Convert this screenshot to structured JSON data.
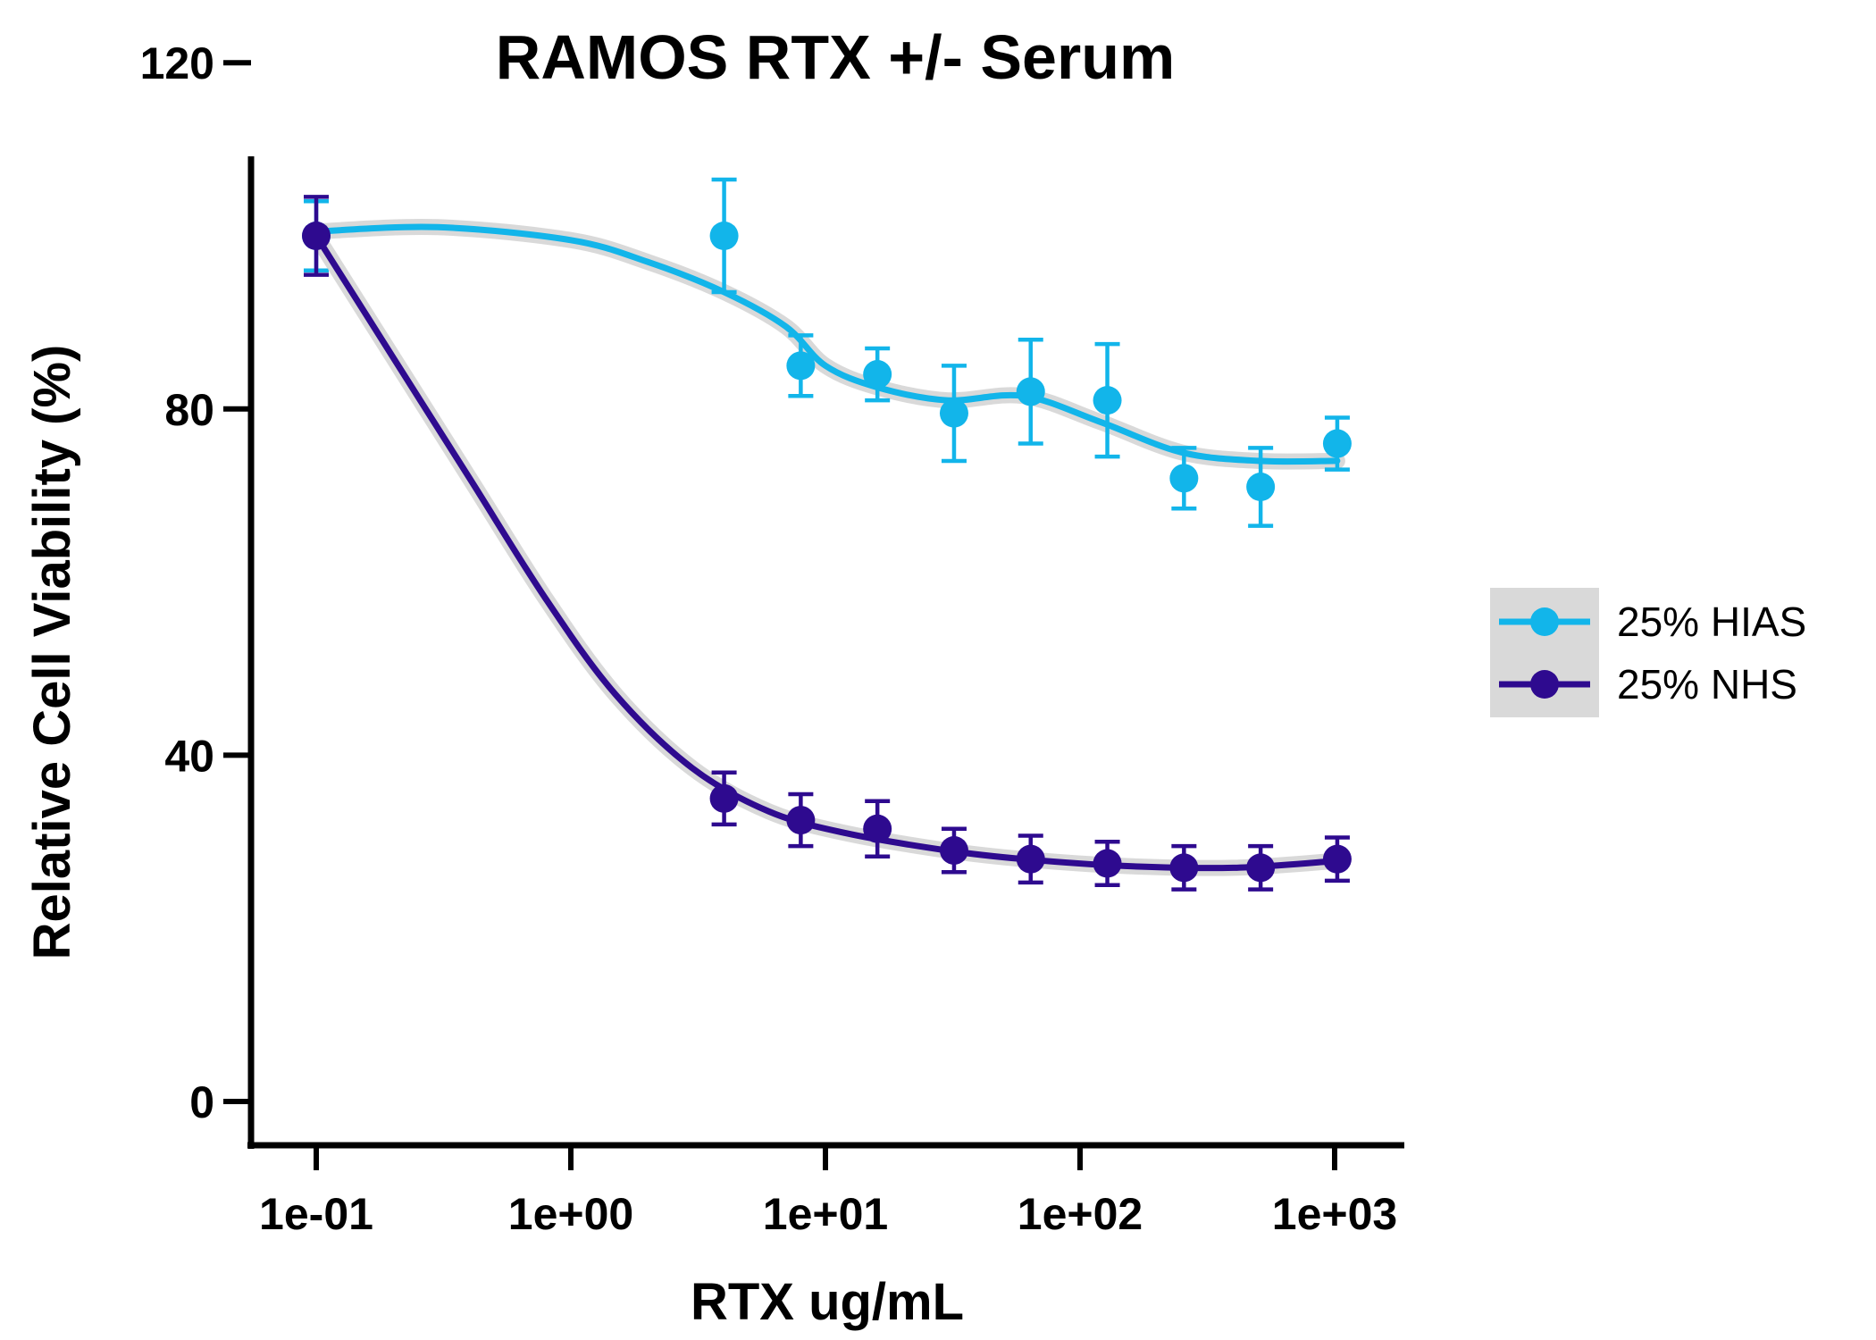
{
  "chart_data": {
    "type": "scatter",
    "title": "RAMOS RTX +/- Serum",
    "xlabel": "RTX ug/mL",
    "ylabel": "Relative Cell Viability (%)",
    "x_scale": "log",
    "xlim": [
      0.06,
      2000
    ],
    "ylim": [
      -6,
      131
    ],
    "x_ticks": [
      0.1,
      1,
      10,
      100,
      1000
    ],
    "x_tick_labels": [
      "1e-01",
      "1e+00",
      "1e+01",
      "1e+02",
      "1e+03"
    ],
    "y_ticks": [
      0,
      40,
      80,
      120
    ],
    "y_tick_labels": [
      "0",
      "40",
      "80",
      "120"
    ],
    "legend_position": "right",
    "series": [
      {
        "name": "25% HIAS",
        "color": "#12b5ea",
        "points": [
          {
            "x": 0.1,
            "y": 100,
            "err": 4
          },
          {
            "x": 4,
            "y": 100,
            "err": 6.5
          },
          {
            "x": 8,
            "y": 85,
            "err": 3.5
          },
          {
            "x": 16,
            "y": 84,
            "err": 3
          },
          {
            "x": 32,
            "y": 79.5,
            "err": 5.5
          },
          {
            "x": 64,
            "y": 82,
            "err": 6
          },
          {
            "x": 128,
            "y": 81,
            "err": 6.5
          },
          {
            "x": 256,
            "y": 72,
            "err": 3.5
          },
          {
            "x": 512,
            "y": 71,
            "err": 4.5
          },
          {
            "x": 1024,
            "y": 76,
            "err": 3
          }
        ],
        "fit": [
          {
            "x": 0.1,
            "y": 100.5
          },
          {
            "x": 0.3,
            "y": 101
          },
          {
            "x": 1,
            "y": 99.5
          },
          {
            "x": 2,
            "y": 97
          },
          {
            "x": 4,
            "y": 93.5
          },
          {
            "x": 7,
            "y": 89.5
          },
          {
            "x": 10,
            "y": 85
          },
          {
            "x": 16,
            "y": 82.5
          },
          {
            "x": 30,
            "y": 81
          },
          {
            "x": 60,
            "y": 81.5
          },
          {
            "x": 120,
            "y": 78.5
          },
          {
            "x": 250,
            "y": 75
          },
          {
            "x": 500,
            "y": 74
          },
          {
            "x": 1024,
            "y": 74
          }
        ]
      },
      {
        "name": "25% NHS",
        "color": "#2e0a8f",
        "points": [
          {
            "x": 0.1,
            "y": 100,
            "err": 4.5
          },
          {
            "x": 4,
            "y": 35,
            "err": 3
          },
          {
            "x": 8,
            "y": 32.5,
            "err": 3
          },
          {
            "x": 16,
            "y": 31.5,
            "err": 3.2
          },
          {
            "x": 32,
            "y": 29,
            "err": 2.5
          },
          {
            "x": 64,
            "y": 28,
            "err": 2.7
          },
          {
            "x": 128,
            "y": 27.5,
            "err": 2.5
          },
          {
            "x": 256,
            "y": 27,
            "err": 2.5
          },
          {
            "x": 512,
            "y": 27,
            "err": 2.5
          },
          {
            "x": 1024,
            "y": 28,
            "err": 2.5
          }
        ],
        "fit": [
          {
            "x": 0.1,
            "y": 100
          },
          {
            "x": 0.2,
            "y": 86
          },
          {
            "x": 0.4,
            "y": 72
          },
          {
            "x": 0.8,
            "y": 58
          },
          {
            "x": 1.5,
            "y": 47
          },
          {
            "x": 3,
            "y": 38.5
          },
          {
            "x": 6,
            "y": 33.5
          },
          {
            "x": 12,
            "y": 31
          },
          {
            "x": 30,
            "y": 29
          },
          {
            "x": 60,
            "y": 28
          },
          {
            "x": 150,
            "y": 27.2
          },
          {
            "x": 400,
            "y": 27
          },
          {
            "x": 1024,
            "y": 27.8
          }
        ]
      }
    ]
  }
}
